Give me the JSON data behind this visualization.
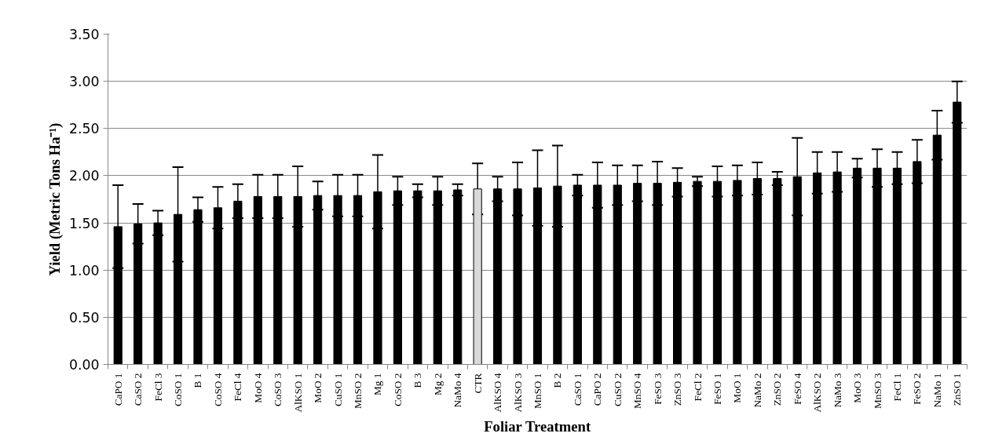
{
  "chart_data": {
    "type": "bar",
    "xlabel": "Foliar Treatment",
    "ylabel": "Yield (Metric Tons Ha⁻¹)",
    "categories": [
      "CaPO 1",
      "CaSO 2",
      "FeCl 3",
      "CoSO 1",
      "B 1",
      "CoSO 4",
      "FeCl 4",
      "MoO 4",
      "CoSO 3",
      "AlKSO 1",
      "MoO 2",
      "CuSO 1",
      "MnSO 2",
      "Mg 1",
      "CoSO 2",
      "B 3",
      "Mg 2",
      "NaMo 4",
      "CTR",
      "AlKSO 4",
      "AlKSO 3",
      "MnSO 1",
      "B 2",
      "CaSO 1",
      "CaPO 2",
      "CuSO 2",
      "MnSO 4",
      "FeSO 3",
      "ZnSO 3",
      "FeCl 2",
      "FeSO 1",
      "MoO 1",
      "NaMo 2",
      "ZnSO 2",
      "FeSO 4",
      "AlKSO 2",
      "NaMo 3",
      "MoO 3",
      "MnSO 3",
      "FeCl 1",
      "FeSO 2",
      "NaMo 1",
      "ZnSO 1"
    ],
    "values": [
      1.46,
      1.49,
      1.5,
      1.59,
      1.64,
      1.66,
      1.73,
      1.78,
      1.78,
      1.78,
      1.79,
      1.79,
      1.79,
      1.83,
      1.84,
      1.84,
      1.84,
      1.85,
      1.86,
      1.86,
      1.86,
      1.87,
      1.89,
      1.9,
      1.9,
      1.9,
      1.92,
      1.92,
      1.93,
      1.94,
      1.94,
      1.95,
      1.97,
      1.97,
      1.99,
      2.03,
      2.04,
      2.08,
      2.08,
      2.08,
      2.15,
      2.43,
      2.78
    ],
    "errors": [
      0.44,
      0.21,
      0.13,
      0.5,
      0.13,
      0.22,
      0.18,
      0.23,
      0.23,
      0.32,
      0.15,
      0.22,
      0.22,
      0.39,
      0.15,
      0.07,
      0.15,
      0.06,
      0.27,
      0.13,
      0.28,
      0.4,
      0.43,
      0.11,
      0.24,
      0.21,
      0.19,
      0.23,
      0.15,
      0.05,
      0.16,
      0.16,
      0.17,
      0.07,
      0.41,
      0.22,
      0.21,
      0.1,
      0.2,
      0.17,
      0.23,
      0.26,
      0.22
    ],
    "colors": [
      "#000000",
      "#000000",
      "#000000",
      "#000000",
      "#000000",
      "#000000",
      "#000000",
      "#000000",
      "#000000",
      "#000000",
      "#000000",
      "#000000",
      "#000000",
      "#000000",
      "#000000",
      "#000000",
      "#000000",
      "#000000",
      "#d9d9d9",
      "#000000",
      "#000000",
      "#000000",
      "#000000",
      "#000000",
      "#000000",
      "#000000",
      "#000000",
      "#000000",
      "#000000",
      "#000000",
      "#000000",
      "#000000",
      "#000000",
      "#000000",
      "#000000",
      "#000000",
      "#000000",
      "#000000",
      "#000000",
      "#000000",
      "#000000",
      "#000000",
      "#000000"
    ],
    "ylim": [
      0,
      3.5
    ],
    "yticks": [
      {
        "value": 0,
        "label": "0.00"
      },
      {
        "value": 0.5,
        "label": "0.50"
      },
      {
        "value": 1,
        "label": "1.00"
      },
      {
        "value": 1.5,
        "label": "1.50"
      },
      {
        "value": 2,
        "label": "2.00"
      },
      {
        "value": 2.5,
        "label": "2.50"
      },
      {
        "value": 3,
        "label": "3.00"
      },
      {
        "value": 3.5,
        "label": "3.50"
      }
    ],
    "grid": "y"
  }
}
